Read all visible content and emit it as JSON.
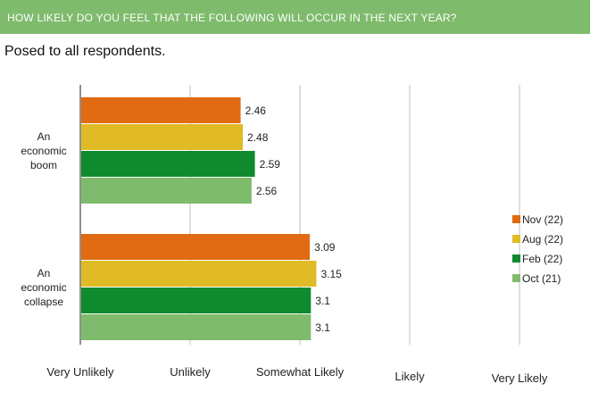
{
  "header": {
    "title": "HOW LIKELY DO YOU FEEL THAT THE FOLLOWING WILL OCCUR IN THE NEXT YEAR?"
  },
  "subtitle": "Posed to all respondents.",
  "chart_data": {
    "type": "bar",
    "orientation": "horizontal",
    "categories": [
      {
        "lines": [
          "An",
          "economic",
          "boom"
        ]
      },
      {
        "lines": [
          "An",
          "economic",
          "collapse"
        ]
      }
    ],
    "series": [
      {
        "name": "Nov (22)",
        "color": "#e06b12",
        "values": [
          2.46,
          3.09
        ],
        "labels": [
          "2.46",
          "3.09"
        ]
      },
      {
        "name": "Aug (22)",
        "color": "#e0bb25",
        "values": [
          2.48,
          3.15
        ],
        "labels": [
          "2.48",
          "3.15"
        ]
      },
      {
        "name": "Feb (22)",
        "color": "#0f8a2e",
        "values": [
          2.59,
          3.1
        ],
        "labels": [
          "2.59",
          "3.1"
        ]
      },
      {
        "name": "Oct (21)",
        "color": "#7fbb6c",
        "values": [
          2.56,
          3.1
        ],
        "labels": [
          "2.56",
          "3.1"
        ]
      }
    ],
    "xlim": [
      1,
      5
    ],
    "xticks": [
      {
        "value": 1,
        "label": "Very Unlikely"
      },
      {
        "value": 2,
        "label": "Unlikely"
      },
      {
        "value": 3,
        "label": "Somewhat Likely"
      },
      {
        "value": 4,
        "label": "Likely"
      },
      {
        "value": 5,
        "label": "Very Likely"
      }
    ],
    "grid": true,
    "legend_position": "right"
  }
}
